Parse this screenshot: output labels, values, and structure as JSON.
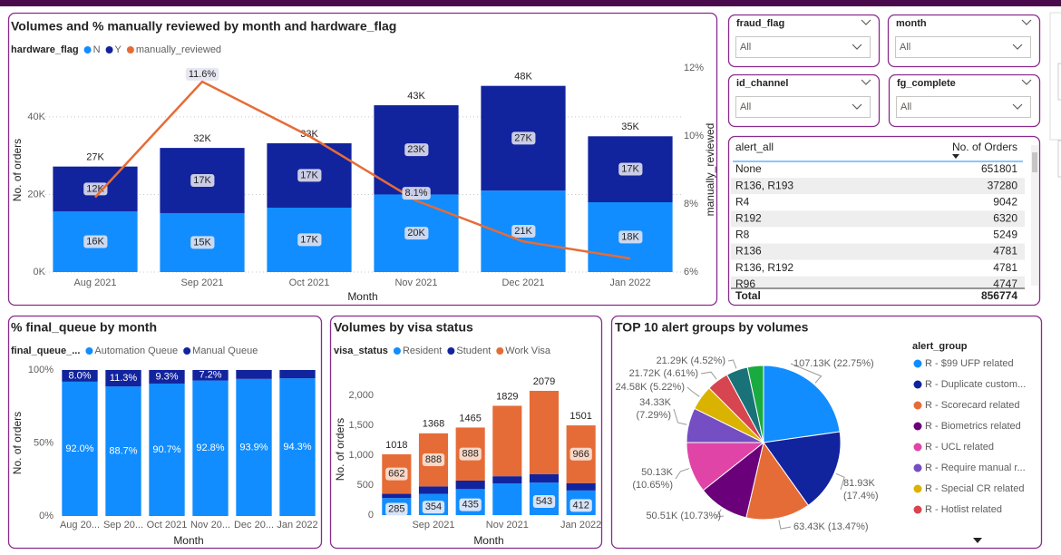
{
  "chart_data": [
    {
      "type": "combo",
      "title": "Volumes and % manually reviewed by month and hardware_flag",
      "legend_title": "hardware_flag",
      "x_label": "Month",
      "y_label": "No. of orders",
      "y2_label": "manually_reviewed",
      "categories": [
        "Aug 2021",
        "Sep 2021",
        "Oct 2021",
        "Nov 2021",
        "Dec 2021",
        "Jan 2022"
      ],
      "series": [
        {
          "name": "N",
          "color": "#118DFF",
          "values": [
            15600,
            15200,
            16600,
            20000,
            21000,
            18000
          ],
          "value_labels": [
            "16K",
            "15K",
            "17K",
            "20K",
            "21K",
            "18K"
          ]
        },
        {
          "name": "Y",
          "color": "#12239E",
          "values": [
            11600,
            16800,
            16600,
            23000,
            27000,
            17000
          ],
          "value_labels": [
            "12K",
            "17K",
            "17K",
            "23K",
            "27K",
            "17K"
          ]
        },
        {
          "name": "manually_reviewed",
          "color": "#E66C37",
          "axis": "y2",
          "values": [
            8.2,
            11.6,
            10.0,
            8.1,
            6.9,
            6.4
          ],
          "value_labels": [
            null,
            "11.6%",
            null,
            "8.1%",
            null,
            null
          ]
        }
      ],
      "total_labels": [
        "27K",
        "32K",
        "33K",
        "43K",
        "48K",
        "35K"
      ],
      "ylim": [
        0,
        52600
      ],
      "yticks": [
        {
          "value": 0,
          "label": "0K"
        },
        {
          "value": 20000,
          "label": "20K"
        },
        {
          "value": 40000,
          "label": "40K"
        }
      ],
      "y2lim": [
        6,
        12
      ],
      "y2ticks": [
        {
          "value": 6,
          "label": "6%"
        },
        {
          "value": 8,
          "label": "8%"
        },
        {
          "value": 10,
          "label": "10%"
        },
        {
          "value": 12,
          "label": "12%"
        }
      ],
      "grid": true
    },
    {
      "type": "stacked_bar",
      "title": "% final_queue by month",
      "legend_title": "final_queue_...",
      "x_label": "Month",
      "y_label": "No. of orders",
      "categories": [
        "Aug 20...",
        "Sep 20...",
        "Oct 2021",
        "Nov 20...",
        "Dec 20...",
        "Jan 2022"
      ],
      "series": [
        {
          "name": "Automation Queue",
          "color": "#118DFF",
          "values": [
            92.0,
            88.7,
            90.7,
            92.8,
            93.9,
            94.3
          ],
          "value_labels": [
            "92.0%",
            "88.7%",
            "90.7%",
            "92.8%",
            "93.9%",
            "94.3%"
          ]
        },
        {
          "name": "Manual Queue",
          "color": "#12239E",
          "values": [
            8.0,
            11.3,
            9.3,
            7.2,
            6.1,
            5.7
          ],
          "value_labels": [
            "8.0%",
            "11.3%",
            "9.3%",
            "7.2%",
            null,
            null
          ]
        }
      ],
      "ylim": [
        0,
        100
      ],
      "yticks": [
        {
          "value": 0,
          "label": "0%"
        },
        {
          "value": 50,
          "label": "50%"
        },
        {
          "value": 100,
          "label": "100%"
        }
      ],
      "grid": false
    },
    {
      "type": "stacked_bar",
      "title": "Volumes by visa status",
      "legend_title": "visa_status",
      "x_label": "Month",
      "y_label": "No. of orders",
      "categories": [
        null,
        "Sep 2021",
        null,
        "Nov 2021",
        null,
        "Jan 2022"
      ],
      "series": [
        {
          "name": "Resident",
          "color": "#118DFF",
          "values": [
            285,
            354,
            435,
            530,
            543,
            412
          ],
          "value_labels": [
            "285",
            "354",
            "435",
            null,
            "543",
            "412"
          ]
        },
        {
          "name": "Student",
          "color": "#12239E",
          "values": [
            71,
            126,
            142,
            120,
            140,
            123
          ]
        },
        {
          "name": "Work Visa",
          "color": "#E66C37",
          "values": [
            662,
            888,
            888,
            1179,
            1396,
            966
          ],
          "value_labels": [
            "662",
            "888",
            "888",
            null,
            null,
            "966"
          ]
        }
      ],
      "total_labels": [
        "1018",
        "1368",
        "1465",
        "1829",
        "2079",
        "1501"
      ],
      "ylim": [
        0,
        2200
      ],
      "yticks": [
        0,
        500,
        {
          "value": 1000,
          "label": "1,000"
        },
        {
          "value": 1500,
          "label": "1,500"
        },
        {
          "value": 2000,
          "label": "2,000"
        }
      ],
      "grid": false
    },
    {
      "type": "pie",
      "title": "TOP 10 alert groups by volumes",
      "legend_title": "alert_group",
      "categories": [
        "R - $99 UFP related",
        "R - Duplicate custom...",
        "R - Scorecard related",
        "R - Biometrics related",
        "R - UCL related",
        "R - Require manual r...",
        "R - Special CR related",
        "R - Hotlist related",
        null,
        null
      ],
      "values": [
        107130,
        81930,
        63430,
        50510,
        50130,
        34330,
        24580,
        21720,
        21290,
        15820
      ],
      "value_labels": [
        "107.13K (22.75%)",
        "81.93K (17.4%)",
        "63.43K (13.47%)",
        "50.51K (10.73%)",
        "50.13K (10.65%)",
        "34.33K (7.29%)",
        "24.58K (5.22%)",
        "21.72K (4.61%)",
        "21.29K (4.52%)",
        null
      ],
      "colors": [
        "#118DFF",
        "#12239E",
        "#E66C37",
        "#6B007B",
        "#E044A7",
        "#744EC2",
        "#D9B300",
        "#D64550",
        "#197278",
        "#1AAB40"
      ]
    }
  ],
  "slicers": [
    {
      "title": "fraud_flag",
      "value": "All"
    },
    {
      "title": "month",
      "value": "All"
    },
    {
      "title": "id_channel",
      "value": "All"
    },
    {
      "title": "fg_complete",
      "value": "All"
    }
  ],
  "table": {
    "columns": [
      "alert_all",
      "No. of Orders"
    ],
    "rows": [
      [
        "None",
        651801
      ],
      [
        "R136, R193",
        37280
      ],
      [
        "R4",
        9042
      ],
      [
        "R192",
        6320
      ],
      [
        "R8",
        5249
      ],
      [
        "R136",
        4781
      ],
      [
        "R136, R192",
        4781
      ],
      [
        "R96",
        4747
      ]
    ],
    "total": [
      "Total",
      856774
    ]
  }
}
